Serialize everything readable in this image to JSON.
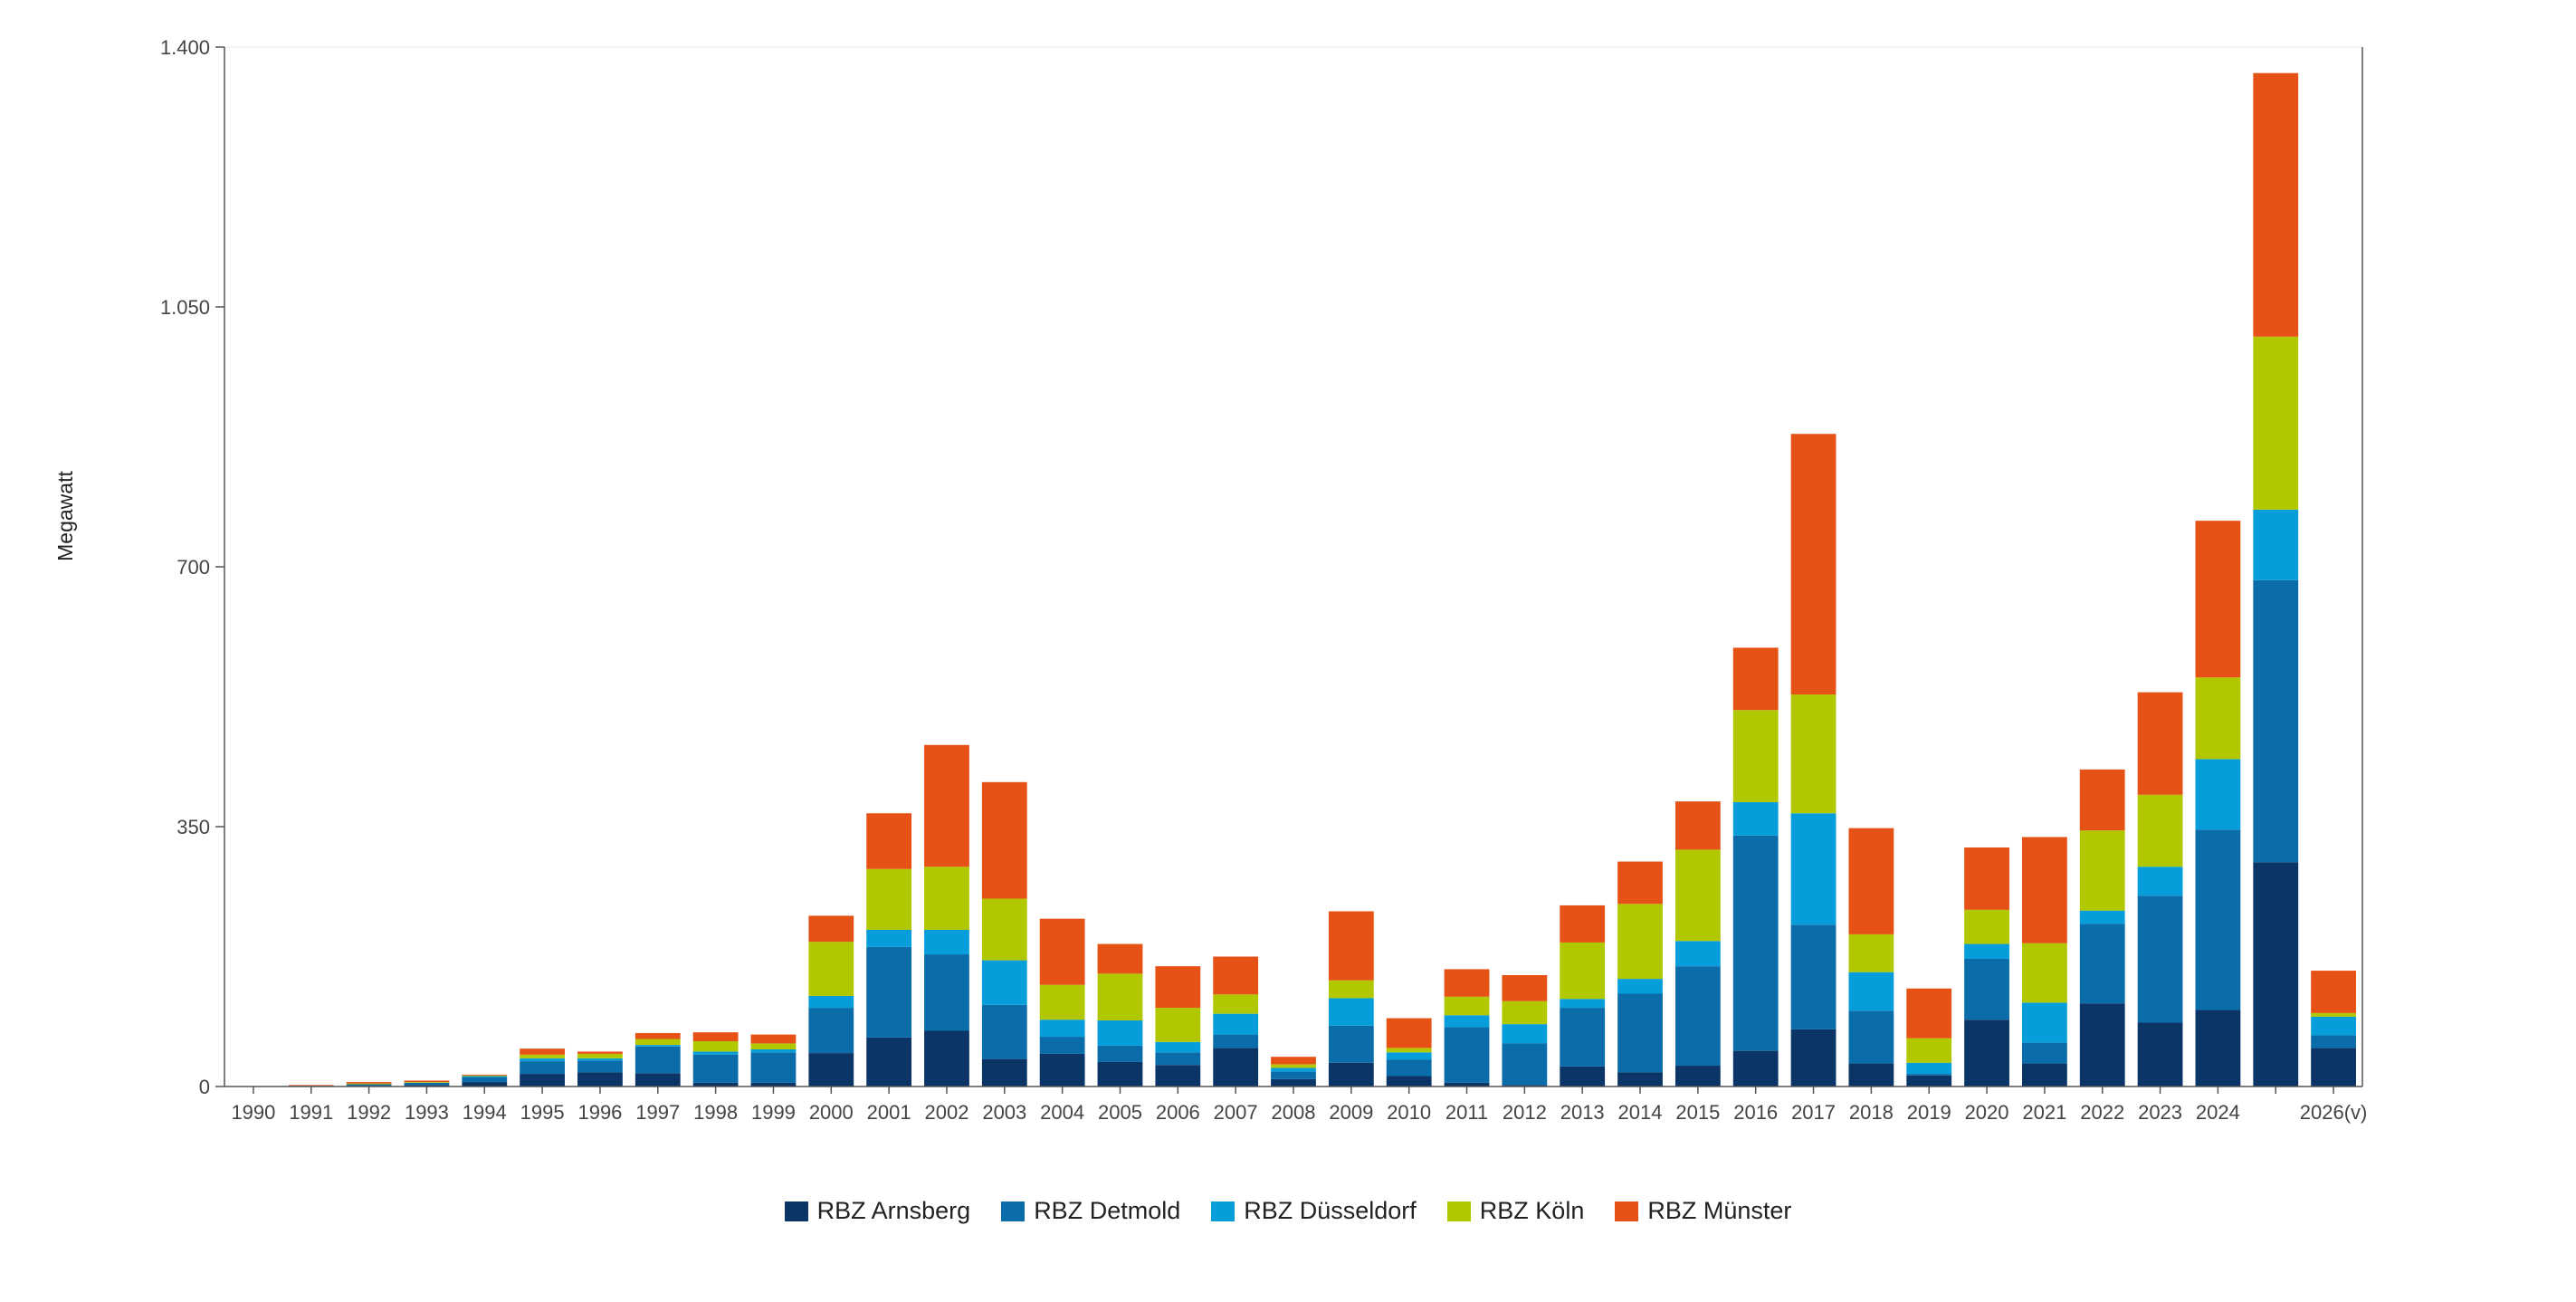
{
  "chart_data": {
    "type": "bar",
    "stacked": true,
    "ylabel": "Megawatt",
    "ylim": [
      0,
      1400
    ],
    "yticks": [
      0,
      350,
      700,
      1050,
      1400
    ],
    "ytick_labels": [
      "0",
      "350",
      "700",
      "1.050",
      "1.400"
    ],
    "categories": [
      "1990",
      "1991",
      "1992",
      "1993",
      "1994",
      "1995",
      "1996",
      "1997",
      "1998",
      "1999",
      "2000",
      "2001",
      "2002",
      "2003",
      "2004",
      "2005",
      "2006",
      "2007",
      "2008",
      "2009",
      "2010",
      "2011",
      "2012",
      "2013",
      "2014",
      "2015",
      "2016",
      "2017",
      "2018",
      "2019",
      "2020",
      "2021",
      "2022",
      "2023",
      "2024",
      "",
      "2026(v)"
    ],
    "series": [
      {
        "name": "RBZ Arnsberg",
        "color": "#0b3467",
        "values": [
          0,
          0,
          1,
          2,
          6,
          17,
          19,
          18,
          5,
          5,
          45,
          66,
          75,
          37,
          44,
          33,
          29,
          52,
          10,
          32,
          14,
          5,
          2,
          27,
          19,
          28,
          48,
          77,
          31,
          15,
          90,
          31,
          112,
          86,
          103,
          302,
          52
        ]
      },
      {
        "name": "RBZ Detmold",
        "color": "#0a6ca8",
        "values": [
          0,
          1,
          2,
          3,
          7,
          17,
          16,
          36,
          38,
          41,
          61,
          122,
          103,
          73,
          23,
          22,
          17,
          18,
          10,
          50,
          22,
          75,
          56,
          79,
          106,
          134,
          290,
          141,
          71,
          2,
          82,
          28,
          107,
          171,
          243,
          380,
          17
        ]
      },
      {
        "name": "RBZ Düsseldorf",
        "color": "#069ddb",
        "values": [
          0,
          0,
          0,
          0,
          1,
          4,
          3,
          2,
          4,
          4,
          16,
          23,
          33,
          60,
          23,
          34,
          14,
          28,
          5,
          37,
          10,
          16,
          26,
          12,
          20,
          34,
          45,
          150,
          52,
          15,
          20,
          54,
          18,
          39,
          95,
          95,
          25
        ]
      },
      {
        "name": "RBZ Köln",
        "color": "#b1c800",
        "values": [
          0,
          0,
          1,
          1,
          1,
          5,
          6,
          8,
          14,
          8,
          73,
          82,
          85,
          83,
          47,
          63,
          46,
          26,
          5,
          24,
          6,
          25,
          31,
          76,
          101,
          123,
          124,
          160,
          51,
          33,
          46,
          80,
          108,
          97,
          110,
          233,
          5
        ]
      },
      {
        "name": "RBZ Münster",
        "color": "#e65115",
        "values": [
          0,
          1,
          2,
          2,
          1,
          8,
          3,
          8,
          12,
          12,
          35,
          75,
          164,
          157,
          89,
          40,
          56,
          51,
          10,
          93,
          40,
          37,
          35,
          50,
          57,
          65,
          84,
          351,
          143,
          67,
          84,
          143,
          82,
          138,
          211,
          355,
          57
        ]
      }
    ]
  }
}
